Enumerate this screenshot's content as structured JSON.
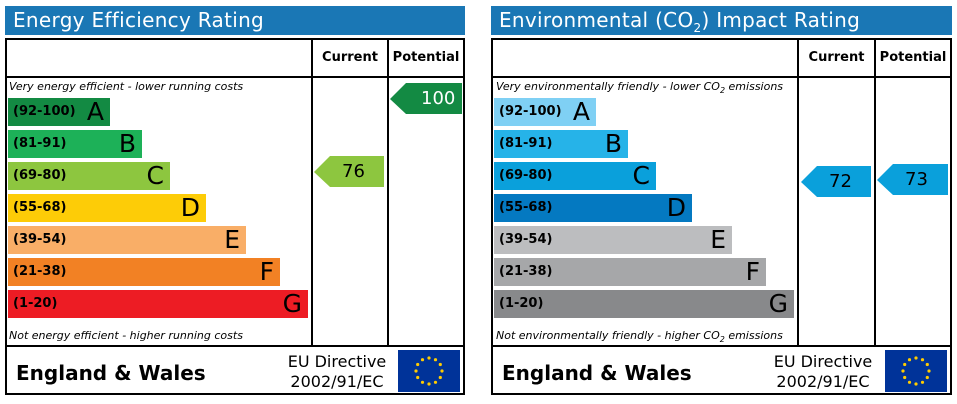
{
  "energy": {
    "title": "Energy Efficiency Rating",
    "col_current": "Current",
    "col_potential": "Potential",
    "top_note": "Very energy efficient - lower running costs",
    "bottom_note": "Not energy efficient - higher running costs",
    "bands": [
      {
        "range": "(92-100)",
        "letter": "A",
        "color": "#138a43"
      },
      {
        "range": "(81-91)",
        "letter": "B",
        "color": "#1db158"
      },
      {
        "range": "(69-80)",
        "letter": "C",
        "color": "#8dc63f"
      },
      {
        "range": "(55-68)",
        "letter": "D",
        "color": "#fdcc07"
      },
      {
        "range": "(39-54)",
        "letter": "E",
        "color": "#f9ae67"
      },
      {
        "range": "(21-38)",
        "letter": "F",
        "color": "#f28124"
      },
      {
        "range": "(1-20)",
        "letter": "G",
        "color": "#ed1c24"
      }
    ],
    "current": {
      "value": "76",
      "color": "#8dc63f"
    },
    "potential": {
      "value": "100",
      "color": "#138a43"
    },
    "footer_region": "England & Wales",
    "directive_line1": "EU Directive",
    "directive_line2": "2002/91/EC"
  },
  "environmental": {
    "title_pre": "Environmental (CO",
    "title_sub": "2",
    "title_post": ") Impact Rating",
    "col_current": "Current",
    "col_potential": "Potential",
    "top_note_pre": "Very environmentally friendly - lower CO",
    "top_note_sub": "2",
    "top_note_post": " emissions",
    "bottom_note_pre": "Not environmentally friendly - higher CO",
    "bottom_note_sub": "2",
    "bottom_note_post": " emissions",
    "bands": [
      {
        "range": "(92-100)",
        "letter": "A",
        "color": "#7fd0f4"
      },
      {
        "range": "(81-91)",
        "letter": "B",
        "color": "#26b3e8"
      },
      {
        "range": "(69-80)",
        "letter": "C",
        "color": "#0aa0db"
      },
      {
        "range": "(55-68)",
        "letter": "D",
        "color": "#0479c1"
      },
      {
        "range": "(39-54)",
        "letter": "E",
        "color": "#bcbdbf"
      },
      {
        "range": "(21-38)",
        "letter": "F",
        "color": "#a6a7a9"
      },
      {
        "range": "(1-20)",
        "letter": "G",
        "color": "#88898b"
      }
    ],
    "current": {
      "value": "72",
      "color": "#0aa0db"
    },
    "potential": {
      "value": "73",
      "color": "#0aa0db"
    },
    "footer_region": "England & Wales",
    "directive_line1": "EU Directive",
    "directive_line2": "2002/91/EC"
  },
  "colors": {
    "title_bar": "#1a77b5",
    "eu_flag": "#003399",
    "eu_star": "#ffcc00"
  },
  "icons": {
    "eu_flag": "eu-flag-icon",
    "arrow": "rating-arrow"
  }
}
